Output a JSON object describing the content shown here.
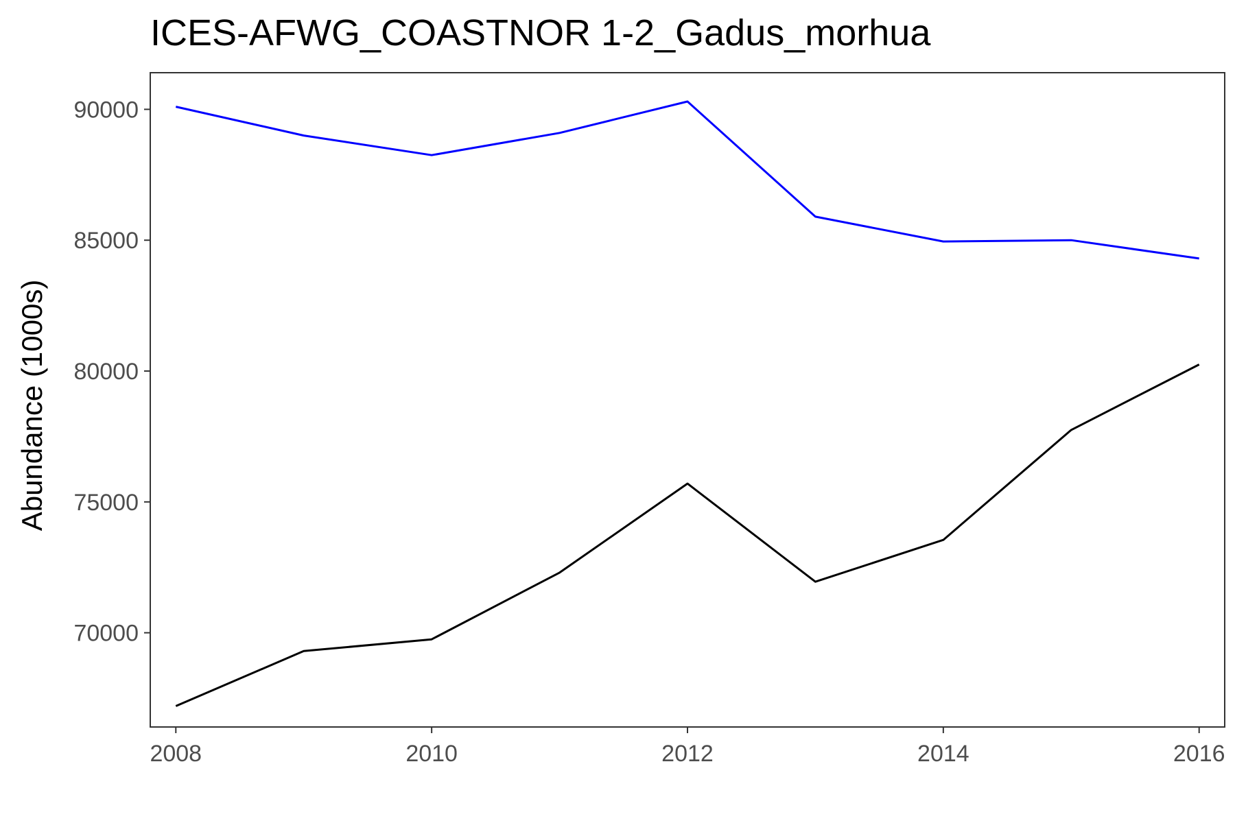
{
  "chart_data": {
    "type": "line",
    "title": "ICES-AFWG_COASTNOR 1-2_Gadus_morhua",
    "xlabel": "",
    "ylabel": "Abundance (1000s)",
    "x": [
      2008,
      2009,
      2010,
      2011,
      2012,
      2013,
      2014,
      2015,
      2016
    ],
    "xlim": [
      2007.8,
      2016.2
    ],
    "ylim": [
      66400,
      91400
    ],
    "xticks": [
      2008,
      2010,
      2012,
      2014,
      2016
    ],
    "yticks": [
      70000,
      75000,
      80000,
      85000,
      90000
    ],
    "grid": false,
    "legend": "none",
    "series": [
      {
        "color": "#0000ff",
        "values": [
          90100,
          89000,
          88250,
          89100,
          90300,
          85900,
          84950,
          85000,
          84300
        ]
      },
      {
        "color": "#000000",
        "values": [
          67200,
          69300,
          69750,
          72300,
          75700,
          71950,
          73550,
          77750,
          80250
        ]
      }
    ]
  }
}
